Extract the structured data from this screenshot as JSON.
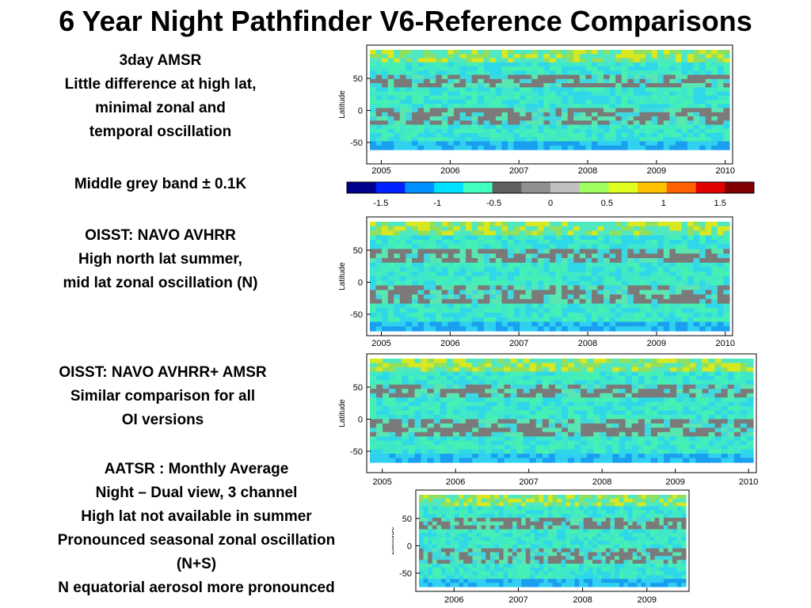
{
  "slide": {
    "title": "6 Year Night Pathfinder V6-Reference Comparisons"
  },
  "notes": {
    "amsr": [
      "3day AMSR",
      "Little difference at high lat,",
      "minimal zonal and",
      "temporal oscillation",
      "",
      "Middle grey band ± 0.1K"
    ],
    "oisst_avhrr": [
      "OISST: NAVO AVHRR",
      "High north lat summer,",
      "mid lat zonal oscillation (N)"
    ],
    "oisst_amsr": [
      "OISST: NAVO AVHRR+ AMSR",
      "Similar comparison for all",
      "OI versions"
    ],
    "aatsr": [
      "AATSR : Monthly Average",
      "Night – Dual view, 3 channel",
      "High lat not available in summer",
      "Pronounced seasonal zonal oscillation",
      "(N+S)",
      "N equatorial aerosol more pronounced"
    ]
  },
  "colorbar": {
    "tick_labels": [
      "-1.5",
      "-1",
      "-0.5",
      "0",
      "0.5",
      "1",
      "1.5"
    ],
    "tick_values": [
      -1.5,
      -1,
      -0.5,
      0,
      0.5,
      1,
      1.5
    ],
    "range": [
      -1.8,
      1.8
    ],
    "colors": [
      "#00008f",
      "#0020ff",
      "#0090ff",
      "#00e0ff",
      "#40ffc0",
      "#606060",
      "#909090",
      "#c0c0c0",
      "#a0ff60",
      "#e0ff20",
      "#ffc000",
      "#ff6000",
      "#e00000",
      "#800000"
    ]
  },
  "panels": [
    {
      "id": "amsr",
      "ylabel": "Latitude",
      "y_ticks": [
        "50",
        "0",
        "-50"
      ],
      "x_ticks": [
        "2005",
        "2006",
        "2007",
        "2008",
        "2009",
        "2010"
      ]
    },
    {
      "id": "oisst-avhrr",
      "ylabel": "Latitude",
      "y_ticks": [
        "50",
        "0",
        "-50"
      ],
      "x_ticks": [
        "2005",
        "2006",
        "2007",
        "2008",
        "2009",
        "2010"
      ]
    },
    {
      "id": "oisst-avhrr-amsr",
      "ylabel": "Latitude",
      "y_ticks": [
        "50",
        "0",
        "-50"
      ],
      "x_ticks": [
        "2005",
        "2006",
        "2007",
        "2008",
        "2009",
        "2010"
      ]
    },
    {
      "id": "aatsr",
      "ylabel": "Latitude",
      "y_ticks": [
        "50",
        "0",
        "-50"
      ],
      "x_ticks": [
        "2006",
        "2007",
        "2008",
        "2009"
      ]
    }
  ]
}
